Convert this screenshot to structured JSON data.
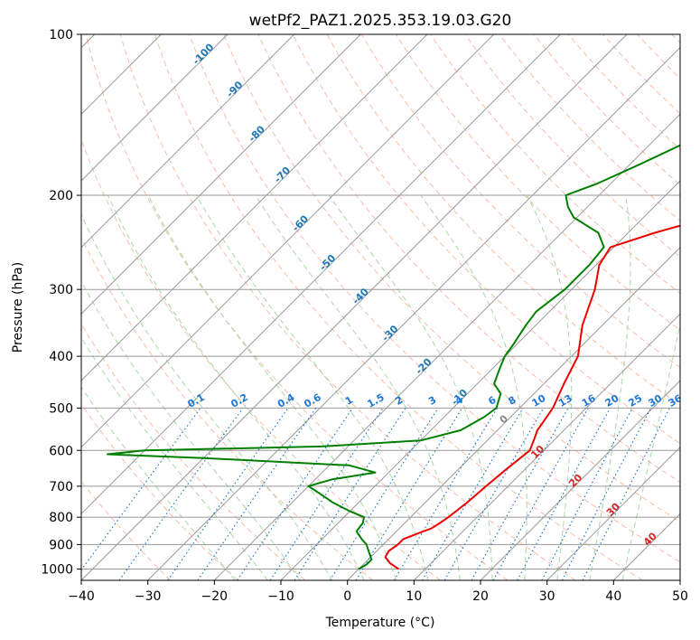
{
  "chart_data": {
    "type": "line",
    "title": "wetPf2_PAZ1.2025.353.19.03.G20",
    "xlabel": "Temperature (°C)",
    "ylabel": "Pressure (hPa)",
    "xlim": [
      -40,
      50
    ],
    "ylim": [
      1050,
      100
    ],
    "x_ticks": [
      -40,
      -30,
      -20,
      -10,
      0,
      10,
      20,
      30,
      40,
      50
    ],
    "x_tick_labels": [
      "−40",
      "−30",
      "−20",
      "−10",
      "0",
      "10",
      "20",
      "30",
      "40",
      "50"
    ],
    "y_ticks": [
      1000,
      900,
      800,
      700,
      600,
      500,
      400,
      300,
      200,
      100
    ],
    "y_tick_labels": [
      "1000",
      "900",
      "800",
      "700",
      "600",
      "500",
      "400",
      "300",
      "200",
      "100"
    ],
    "grid": true,
    "colors": {
      "temperature": "#ee0000",
      "dewpoint": "#008000",
      "isotherm": "#999999",
      "dry_adiabat": "#f6a58b",
      "moist_adiabat": "#9fd39f",
      "mixing_ratio": "#1f77d4",
      "annotation_blue": "#1f77b4",
      "annotation_red": "#d62728",
      "annotation_gray": "#888888"
    },
    "series": [
      {
        "name": "Temperature",
        "color": "#ee0000",
        "points": [
          [
            1000,
            6.0
          ],
          [
            975,
            3.8
          ],
          [
            950,
            2.2
          ],
          [
            925,
            1.8
          ],
          [
            900,
            2.2
          ],
          [
            880,
            2.2
          ],
          [
            860,
            3.4
          ],
          [
            840,
            4.8
          ],
          [
            820,
            5.3
          ],
          [
            800,
            5.7
          ],
          [
            775,
            6.0
          ],
          [
            750,
            6.3
          ],
          [
            700,
            6.7
          ],
          [
            650,
            7.2
          ],
          [
            600,
            7.9
          ],
          [
            575,
            7.0
          ],
          [
            550,
            6.0
          ],
          [
            500,
            5.0
          ],
          [
            450,
            3.0
          ],
          [
            400,
            1.0
          ],
          [
            350,
            -3.0
          ],
          [
            300,
            -6.5
          ],
          [
            270,
            -9.5
          ],
          [
            250,
            -10.5
          ],
          [
            235,
            -6.0
          ],
          [
            220,
            0.0
          ],
          [
            200,
            10.0
          ],
          [
            180,
            16.5
          ],
          [
            160,
            20.5
          ],
          [
            140,
            22.5
          ],
          [
            125,
            24.5
          ],
          [
            110,
            29.5
          ],
          [
            100,
            34.5
          ]
        ]
      },
      {
        "name": "Dewpoint",
        "color": "#008000",
        "points": [
          [
            1000,
            0.0
          ],
          [
            980,
            0.5
          ],
          [
            960,
            0.5
          ],
          [
            930,
            -1.0
          ],
          [
            900,
            -2.5
          ],
          [
            880,
            -4.0
          ],
          [
            850,
            -6.0
          ],
          [
            820,
            -6.3
          ],
          [
            800,
            -7.0
          ],
          [
            780,
            -10.0
          ],
          [
            750,
            -14.0
          ],
          [
            720,
            -17.5
          ],
          [
            700,
            -20.0
          ],
          [
            680,
            -17.5
          ],
          [
            660,
            -12.0
          ],
          [
            640,
            -17.0
          ],
          [
            620,
            -40.0
          ],
          [
            610,
            -55.0
          ],
          [
            600,
            -50.0
          ],
          [
            590,
            -24.0
          ],
          [
            575,
            -10.0
          ],
          [
            550,
            -5.5
          ],
          [
            520,
            -4.0
          ],
          [
            500,
            -3.5
          ],
          [
            470,
            -5.0
          ],
          [
            450,
            -7.5
          ],
          [
            420,
            -9.0
          ],
          [
            400,
            -10.0
          ],
          [
            380,
            -10.5
          ],
          [
            350,
            -11.5
          ],
          [
            330,
            -12.0
          ],
          [
            300,
            -11.0
          ],
          [
            270,
            -11.0
          ],
          [
            250,
            -11.5
          ],
          [
            235,
            -14.5
          ],
          [
            220,
            -20.5
          ],
          [
            210,
            -23.0
          ],
          [
            200,
            -25.0
          ],
          [
            190,
            -22.0
          ],
          [
            175,
            -18.5
          ],
          [
            160,
            -15.0
          ],
          [
            140,
            -12.0
          ],
          [
            125,
            -9.0
          ],
          [
            110,
            -6.5
          ],
          [
            100,
            -3.5
          ]
        ]
      }
    ],
    "isotherm_labels": [
      {
        "temp": -100,
        "p": 110,
        "text": "-100"
      },
      {
        "temp": -90,
        "p": 128,
        "text": "-90"
      },
      {
        "temp": -80,
        "p": 155,
        "text": "-80"
      },
      {
        "temp": -70,
        "p": 185,
        "text": "-70"
      },
      {
        "temp": -60,
        "p": 228,
        "text": "-60"
      },
      {
        "temp": -50,
        "p": 270,
        "text": "-50"
      },
      {
        "temp": -40,
        "p": 312,
        "text": "-40"
      },
      {
        "temp": -30,
        "p": 366,
        "text": "-30"
      },
      {
        "temp": -20,
        "p": 422,
        "text": "-20"
      },
      {
        "temp": -10,
        "p": 482,
        "text": "-10"
      },
      {
        "temp": 0,
        "p": 530,
        "text": "0"
      },
      {
        "temp": 10,
        "p": 610,
        "text": "10"
      },
      {
        "temp": 20,
        "p": 690,
        "text": "20"
      },
      {
        "temp": 30,
        "p": 782,
        "text": "30"
      },
      {
        "temp": 40,
        "p": 888,
        "text": "40"
      }
    ],
    "mixing_ratio_labels": [
      "0.1",
      "0.2",
      "0.4",
      "0.6",
      "1",
      "1.5",
      "2",
      "3",
      "4",
      "6",
      "8",
      "10",
      "13",
      "16",
      "20",
      "25",
      "30",
      "36"
    ],
    "mixing_ratio_label_x": [
      -22.5,
      -16.0,
      -9.0,
      -5.0,
      0.5,
      4.5,
      8.0,
      13.0,
      17.0,
      22.0,
      25.0,
      29.0,
      33.0,
      36.5,
      40.0,
      43.5,
      46.5,
      49.5
    ]
  }
}
